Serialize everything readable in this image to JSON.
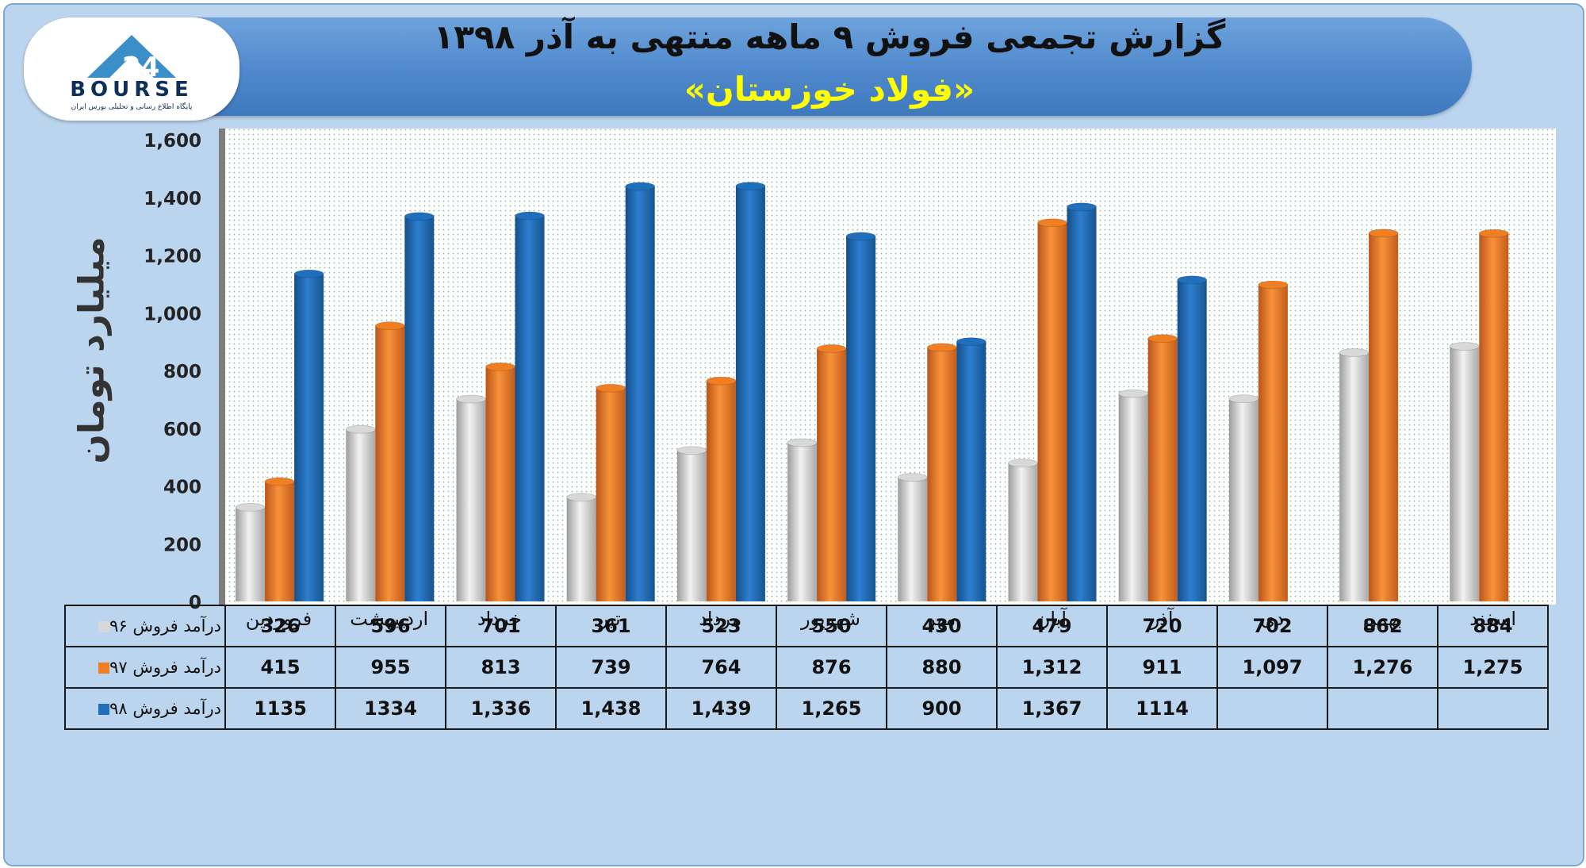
{
  "header": {
    "title": "گزارش تجمعی فروش ۹ ماهه منتهی به آذر ۱۳۹۸",
    "subtitle": "«فولاد خوزستان»"
  },
  "logo": {
    "name": "BOURSE",
    "tagline": "پایگاه اطلاع رسانی و تحلیلی بورس ایران"
  },
  "chart_data": {
    "type": "bar",
    "ylabel": "میلیارد تومان",
    "ylim": [
      0,
      1600
    ],
    "yticks": [
      "0",
      "200",
      "400",
      "600",
      "800",
      "1,000",
      "1,200",
      "1,400",
      "1,600"
    ],
    "grid": false,
    "categories": [
      "فروردین",
      "اردیبهشت",
      "خرداد",
      "تیر",
      "مرداد",
      "شهریور",
      "مهر",
      "آبان",
      "آذر",
      "دی",
      "بهمن",
      "اسفند"
    ],
    "series": [
      {
        "name": "درآمد فروش ۹۶",
        "color": "#d8d8d8",
        "values": [
          326,
          596,
          701,
          361,
          523,
          550,
          430,
          479,
          720,
          702,
          862,
          884
        ],
        "labels": [
          "326",
          "596",
          "701",
          "361",
          "523",
          "550",
          "430",
          "479",
          "720",
          "702",
          "862",
          "884"
        ]
      },
      {
        "name": "درآمد فروش ۹۷",
        "color": "#f07f23",
        "values": [
          415,
          955,
          813,
          739,
          764,
          876,
          880,
          1312,
          911,
          1097,
          1276,
          1275
        ],
        "labels": [
          "415",
          "955",
          "813",
          "739",
          "764",
          "876",
          "880",
          "1,312",
          "911",
          "1,097",
          "1,276",
          "1,275"
        ]
      },
      {
        "name": "درآمد فروش ۹۸",
        "color": "#1f6fbd",
        "values": [
          1135,
          1334,
          1336,
          1438,
          1439,
          1265,
          900,
          1367,
          1114,
          null,
          null,
          null
        ],
        "labels": [
          "1135",
          "1334",
          "1,336",
          "1,438",
          "1,439",
          "1,265",
          "900",
          "1,367",
          "1114",
          "",
          "",
          ""
        ]
      }
    ]
  }
}
